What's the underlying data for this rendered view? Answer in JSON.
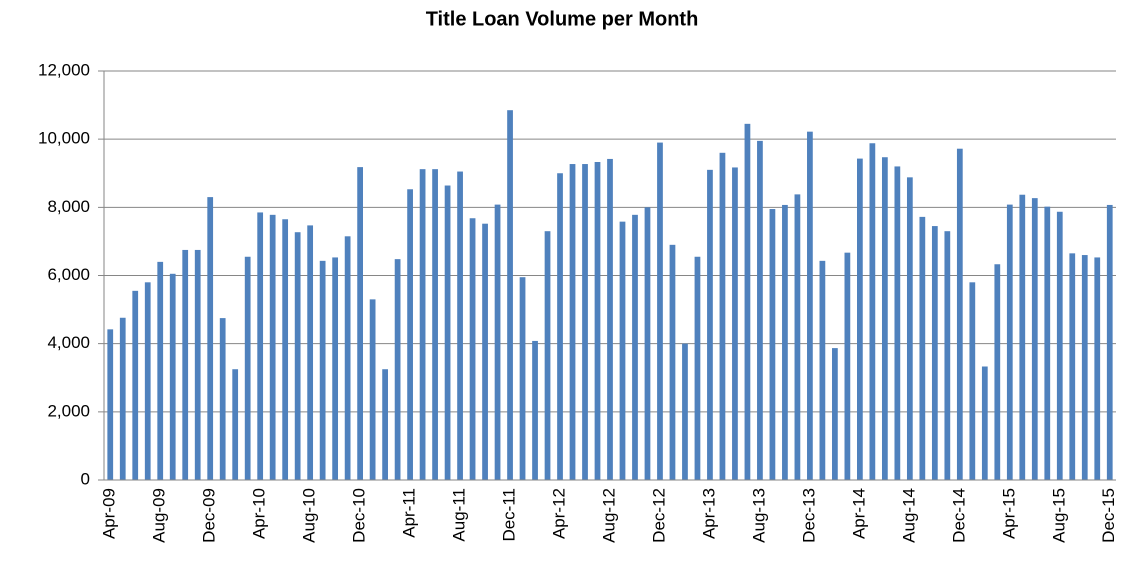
{
  "chart_data": {
    "type": "bar",
    "title": "Title Loan Volume per Month",
    "categories": [
      "Apr-09",
      null,
      null,
      null,
      "Aug-09",
      null,
      null,
      null,
      "Dec-09",
      null,
      null,
      null,
      "Apr-10",
      null,
      null,
      null,
      "Aug-10",
      null,
      null,
      null,
      "Dec-10",
      null,
      null,
      null,
      "Apr-11",
      null,
      null,
      null,
      "Aug-11",
      null,
      null,
      null,
      "Dec-11",
      null,
      null,
      null,
      "Apr-12",
      null,
      null,
      null,
      "Aug-12",
      null,
      null,
      null,
      "Dec-12",
      null,
      null,
      null,
      "Apr-13",
      null,
      null,
      null,
      "Aug-13",
      null,
      null,
      null,
      "Dec-13",
      null,
      null,
      null,
      "Apr-14",
      null,
      null,
      null,
      "Aug-14",
      null,
      null,
      null,
      "Dec-14",
      null,
      null,
      null,
      "Apr-15",
      null,
      null,
      null,
      "Aug-15",
      null,
      null,
      null,
      "Dec-15"
    ],
    "values": [
      4420,
      4760,
      5550,
      5800,
      6400,
      6050,
      6750,
      6750,
      8300,
      4750,
      3250,
      6550,
      7850,
      7780,
      7650,
      7270,
      7470,
      6430,
      6530,
      7150,
      9180,
      5300,
      3250,
      6480,
      8530,
      9120,
      9120,
      8640,
      9050,
      7680,
      7520,
      8080,
      10850,
      5950,
      4080,
      7300,
      9000,
      9270,
      9270,
      9330,
      9420,
      7580,
      7780,
      8000,
      9900,
      6900,
      4000,
      6550,
      9100,
      9600,
      9170,
      10450,
      9950,
      7950,
      8070,
      8380,
      10220,
      6430,
      3870,
      6670,
      9430,
      9880,
      9470,
      9200,
      8880,
      7720,
      7450,
      7300,
      9720,
      5800,
      3330,
      6330,
      8080,
      8370,
      8270,
      8020,
      7870,
      6650,
      6600,
      6530,
      8070
    ],
    "color": "#4f81bd",
    "ylim": [
      0,
      12000
    ],
    "yticks": [
      0,
      {
        "value": 2000,
        "label": "2,000"
      },
      {
        "value": 4000,
        "label": "4,000"
      },
      {
        "value": 6000,
        "label": "6,000"
      },
      {
        "value": 8000,
        "label": "8,000"
      },
      {
        "value": 10000,
        "label": "10,000"
      },
      {
        "value": 12000,
        "label": "12,000"
      }
    ],
    "grid": true
  }
}
